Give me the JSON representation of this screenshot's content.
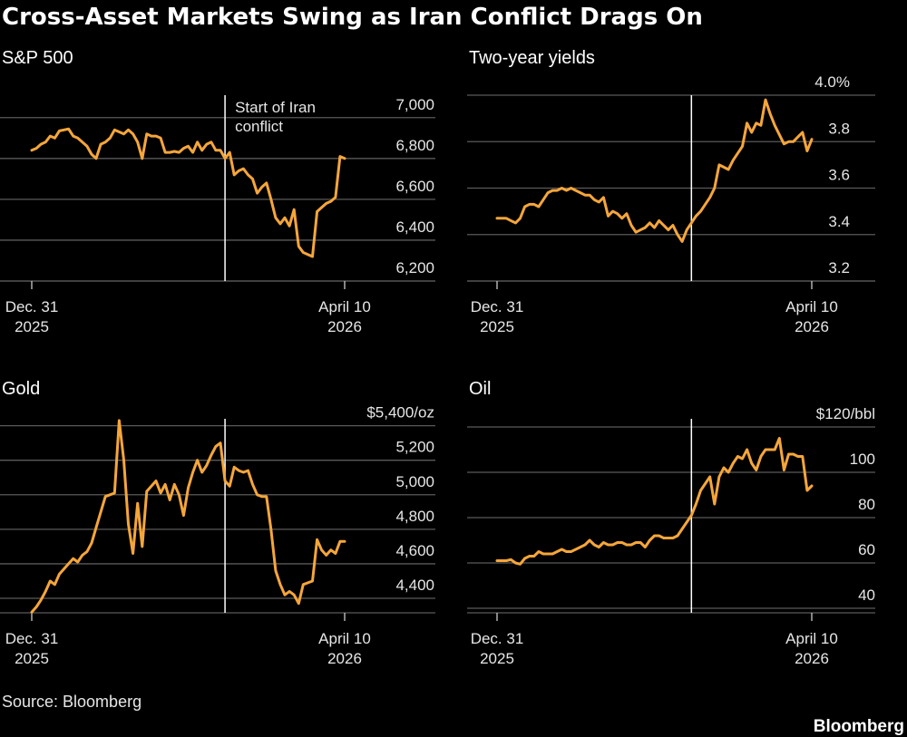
{
  "title": "Cross-Asset Markets Swing as Iran Conflict Drags On",
  "source": "Source: Bloomberg",
  "brand": "Bloomberg",
  "chart_data": [
    {
      "type": "line",
      "title": "S&P 500",
      "color": "#f5a63a",
      "categories": [
        [
          "Dec. 31",
          "2025"
        ],
        null,
        null,
        null,
        null,
        null,
        null,
        null,
        null,
        null,
        null,
        null,
        null,
        null,
        null,
        null,
        null,
        null,
        null,
        null,
        null,
        null,
        null,
        null,
        null,
        null,
        null,
        null,
        null,
        null,
        null,
        null,
        null,
        null,
        null,
        null,
        null,
        null,
        null,
        null,
        null,
        null,
        null,
        null,
        null,
        null,
        null,
        null,
        null,
        null,
        null,
        null,
        null,
        null,
        null,
        null,
        null,
        null,
        null,
        null,
        null,
        null,
        null,
        null,
        null,
        null,
        null,
        null,
        [
          "April 10",
          "2026"
        ]
      ],
      "values": [
        6840,
        6850,
        6870,
        6880,
        6910,
        6900,
        6935,
        6940,
        6945,
        6910,
        6900,
        6880,
        6860,
        6820,
        6800,
        6870,
        6880,
        6900,
        6940,
        6930,
        6920,
        6940,
        6920,
        6880,
        6800,
        6920,
        6910,
        6910,
        6900,
        6830,
        6830,
        6835,
        6830,
        6850,
        6860,
        6830,
        6880,
        6840,
        6870,
        6880,
        6840,
        6840,
        6800,
        6830,
        6720,
        6740,
        6750,
        6720,
        6700,
        6630,
        6660,
        6680,
        6600,
        6510,
        6480,
        6510,
        6470,
        6550,
        6370,
        6340,
        6330,
        6320,
        6540,
        6560,
        6580,
        6590,
        6610,
        6810,
        6800
      ],
      "event_index": 42,
      "annotation": [
        "Start of Iran",
        "conflict"
      ],
      "ylim": [
        6200,
        7110
      ],
      "yticks": [
        {
          "value": 6200,
          "label": "6,200"
        },
        {
          "value": 6400,
          "label": "6,400"
        },
        {
          "value": 6600,
          "label": "6,600"
        },
        {
          "value": 6800,
          "label": "6,800"
        },
        {
          "value": 7000,
          "label": "7,000"
        }
      ],
      "grid": true
    },
    {
      "type": "line",
      "title": "Two-year yields",
      "color": "#f5a63a",
      "categories": [
        [
          "Dec. 31",
          "2025"
        ],
        null,
        null,
        null,
        null,
        null,
        null,
        null,
        null,
        null,
        null,
        null,
        null,
        null,
        null,
        null,
        null,
        null,
        null,
        null,
        null,
        null,
        null,
        null,
        null,
        null,
        null,
        null,
        null,
        null,
        null,
        null,
        null,
        null,
        null,
        null,
        null,
        null,
        null,
        null,
        null,
        null,
        null,
        null,
        null,
        null,
        null,
        null,
        null,
        null,
        null,
        null,
        null,
        null,
        null,
        null,
        null,
        null,
        null,
        null,
        null,
        null,
        null,
        null,
        null,
        null,
        null,
        null,
        [
          "April 10",
          "2026"
        ]
      ],
      "values": [
        3.47,
        3.47,
        3.47,
        3.46,
        3.45,
        3.47,
        3.52,
        3.53,
        3.53,
        3.52,
        3.55,
        3.58,
        3.59,
        3.59,
        3.6,
        3.59,
        3.6,
        3.59,
        3.58,
        3.57,
        3.57,
        3.55,
        3.54,
        3.56,
        3.48,
        3.5,
        3.49,
        3.47,
        3.49,
        3.44,
        3.41,
        3.42,
        3.43,
        3.45,
        3.43,
        3.46,
        3.44,
        3.42,
        3.44,
        3.4,
        3.37,
        3.42,
        3.45,
        3.48,
        3.5,
        3.53,
        3.56,
        3.6,
        3.7,
        3.69,
        3.68,
        3.72,
        3.75,
        3.78,
        3.88,
        3.84,
        3.88,
        3.87,
        3.98,
        3.92,
        3.87,
        3.83,
        3.79,
        3.8,
        3.8,
        3.82,
        3.84,
        3.76,
        3.81
      ],
      "event_index": 42,
      "ylim": [
        3.2,
        4.0
      ],
      "yticks": [
        {
          "value": 3.2,
          "label": "3.2"
        },
        {
          "value": 3.4,
          "label": "3.4"
        },
        {
          "value": 3.6,
          "label": "3.6"
        },
        {
          "value": 3.8,
          "label": "3.8"
        },
        {
          "value": 4.0,
          "label": "4.0%"
        }
      ],
      "grid": true
    },
    {
      "type": "line",
      "title": "Gold",
      "color": "#f5a63a",
      "categories": [
        [
          "Dec. 31",
          "2025"
        ],
        null,
        null,
        null,
        null,
        null,
        null,
        null,
        null,
        null,
        null,
        null,
        null,
        null,
        null,
        null,
        null,
        null,
        null,
        null,
        null,
        null,
        null,
        null,
        null,
        null,
        null,
        null,
        null,
        null,
        null,
        null,
        null,
        null,
        null,
        null,
        null,
        null,
        null,
        null,
        null,
        null,
        null,
        null,
        null,
        null,
        null,
        null,
        null,
        null,
        null,
        null,
        null,
        null,
        null,
        null,
        null,
        null,
        null,
        null,
        null,
        null,
        null,
        null,
        null,
        null,
        null,
        null,
        [
          "April 10",
          "2026"
        ]
      ],
      "values": [
        4320,
        4350,
        4390,
        4440,
        4500,
        4480,
        4540,
        4570,
        4600,
        4630,
        4610,
        4650,
        4670,
        4720,
        4810,
        4900,
        4990,
        5000,
        5010,
        5430,
        5200,
        4830,
        4660,
        4950,
        4700,
        5020,
        5050,
        5080,
        5010,
        5060,
        4970,
        5060,
        5000,
        4880,
        5040,
        5130,
        5200,
        5130,
        5170,
        5230,
        5280,
        5300,
        5080,
        5050,
        5160,
        5140,
        5130,
        5140,
        5060,
        5000,
        4990,
        4990,
        4800,
        4560,
        4480,
        4420,
        4440,
        4420,
        4370,
        4480,
        4490,
        4500,
        4740,
        4680,
        4650,
        4680,
        4660,
        4730,
        4730
      ],
      "event_index": 42,
      "ylim": [
        4316,
        5440
      ],
      "yticks": [
        {
          "value": 4400,
          "label": "4,400"
        },
        {
          "value": 4600,
          "label": "4,600"
        },
        {
          "value": 4800,
          "label": "4,800"
        },
        {
          "value": 5000,
          "label": "5,000"
        },
        {
          "value": 5200,
          "label": "5,200"
        },
        {
          "value": 5400,
          "label": "$5,400/oz"
        }
      ],
      "grid": true
    },
    {
      "type": "line",
      "title": "Oil",
      "color": "#f5a63a",
      "categories": [
        [
          "Dec. 31",
          "2025"
        ],
        null,
        null,
        null,
        null,
        null,
        null,
        null,
        null,
        null,
        null,
        null,
        null,
        null,
        null,
        null,
        null,
        null,
        null,
        null,
        null,
        null,
        null,
        null,
        null,
        null,
        null,
        null,
        null,
        null,
        null,
        null,
        null,
        null,
        null,
        null,
        null,
        null,
        null,
        null,
        null,
        null,
        null,
        null,
        null,
        null,
        null,
        null,
        null,
        null,
        null,
        null,
        null,
        null,
        null,
        null,
        null,
        null,
        null,
        null,
        null,
        null,
        null,
        null,
        null,
        null,
        null,
        null,
        [
          "April 10",
          "2026"
        ]
      ],
      "values": [
        61,
        61,
        61,
        61.5,
        60,
        59.5,
        62,
        63,
        63,
        65,
        64,
        64,
        64,
        65,
        66,
        65,
        65,
        66,
        67,
        68,
        70,
        68,
        67,
        69,
        68,
        68,
        69,
        69,
        68,
        68,
        69,
        69,
        67,
        70,
        72,
        72,
        71,
        71,
        71,
        72,
        75,
        78,
        81,
        86,
        92,
        95,
        98,
        86,
        98,
        102,
        100,
        104,
        107,
        106,
        110,
        104,
        101,
        107,
        110,
        110,
        110,
        115,
        101,
        108,
        108,
        107,
        107,
        92,
        94
      ],
      "event_index": 42,
      "ylim": [
        38,
        123.6
      ],
      "yticks": [
        40,
        60,
        80,
        100,
        {
          "value": 120,
          "label": "$120/bbl"
        }
      ],
      "grid": true
    }
  ]
}
